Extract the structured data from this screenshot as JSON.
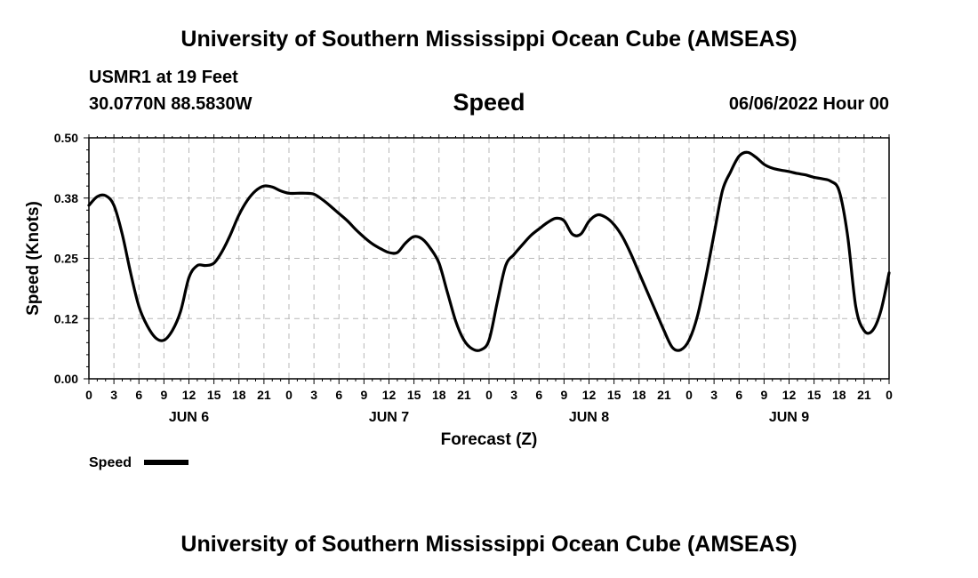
{
  "header": {
    "title": "University of Southern Mississippi Ocean Cube (AMSEAS)",
    "station": "USMR1 at 19 Feet",
    "coordinates": "30.0770N  88.5830W",
    "variable": "Speed",
    "datetime": "06/06/2022 Hour 00"
  },
  "footer": {
    "title": "University of Southern Mississippi Ocean Cube (AMSEAS)"
  },
  "chart_data": {
    "type": "line",
    "title": "Speed",
    "xlabel": "Forecast (Z)",
    "ylabel": "Speed (Knots)",
    "xlim": [
      0,
      96
    ],
    "ylim": [
      0,
      0.5
    ],
    "grid": true,
    "y_ticks": [
      0.0,
      0.125,
      0.25,
      0.375,
      0.5
    ],
    "y_tick_labels": [
      "0.00",
      "0.12",
      "0.25",
      "0.38",
      "0.50"
    ],
    "x_ticks": [
      0,
      3,
      6,
      9,
      12,
      15,
      18,
      21,
      24,
      27,
      30,
      33,
      36,
      39,
      42,
      45,
      48,
      51,
      54,
      57,
      60,
      63,
      66,
      69,
      72,
      75,
      78,
      81,
      84,
      87,
      90,
      93,
      96
    ],
    "x_tick_labels": [
      "0",
      "3",
      "6",
      "9",
      "12",
      "15",
      "18",
      "21",
      "0",
      "3",
      "6",
      "9",
      "12",
      "15",
      "18",
      "21",
      "0",
      "3",
      "6",
      "9",
      "12",
      "15",
      "18",
      "21",
      "0",
      "3",
      "6",
      "9",
      "12",
      "15",
      "18",
      "21",
      "0"
    ],
    "day_labels": [
      {
        "label": "JUN 6",
        "x": 12
      },
      {
        "label": "JUN 7",
        "x": 36
      },
      {
        "label": "JUN 8",
        "x": 60
      },
      {
        "label": "JUN 9",
        "x": 84
      }
    ],
    "legend": {
      "label": "Speed",
      "position": "bottom-left"
    },
    "series": [
      {
        "name": "Speed",
        "color": "#000000",
        "x": [
          0,
          1,
          2,
          3,
          4,
          5,
          6,
          7,
          8,
          9,
          10,
          11,
          12,
          13,
          14,
          15,
          16,
          17,
          18,
          19,
          20,
          21,
          22,
          23,
          24,
          25,
          26,
          27,
          28,
          29,
          30,
          31,
          32,
          33,
          34,
          35,
          36,
          37,
          38,
          39,
          40,
          41,
          42,
          43,
          44,
          45,
          46,
          47,
          48,
          49,
          50,
          51,
          52,
          53,
          54,
          55,
          56,
          57,
          58,
          59,
          60,
          61,
          62,
          63,
          64,
          65,
          66,
          67,
          68,
          69,
          70,
          71,
          72,
          73,
          74,
          75,
          76,
          77,
          78,
          79,
          80,
          81,
          82,
          83,
          84,
          85,
          86,
          87,
          88,
          89,
          90,
          91,
          92,
          93,
          94,
          95,
          96
        ],
        "values": [
          0.36,
          0.378,
          0.38,
          0.36,
          0.3,
          0.22,
          0.15,
          0.11,
          0.085,
          0.08,
          0.1,
          0.14,
          0.21,
          0.235,
          0.235,
          0.24,
          0.265,
          0.3,
          0.34,
          0.37,
          0.39,
          0.4,
          0.398,
          0.39,
          0.385,
          0.385,
          0.385,
          0.383,
          0.372,
          0.358,
          0.343,
          0.328,
          0.31,
          0.294,
          0.28,
          0.27,
          0.262,
          0.262,
          0.282,
          0.295,
          0.29,
          0.27,
          0.24,
          0.18,
          0.12,
          0.08,
          0.062,
          0.06,
          0.08,
          0.16,
          0.235,
          0.258,
          0.278,
          0.297,
          0.311,
          0.324,
          0.333,
          0.328,
          0.3,
          0.3,
          0.327,
          0.34,
          0.335,
          0.32,
          0.295,
          0.26,
          0.22,
          0.18,
          0.14,
          0.1,
          0.065,
          0.06,
          0.08,
          0.13,
          0.21,
          0.3,
          0.39,
          0.43,
          0.462,
          0.47,
          0.46,
          0.445,
          0.437,
          0.433,
          0.43,
          0.426,
          0.423,
          0.418,
          0.415,
          0.41,
          0.39,
          0.3,
          0.15,
          0.1,
          0.1,
          0.14,
          0.22
        ]
      }
    ]
  }
}
